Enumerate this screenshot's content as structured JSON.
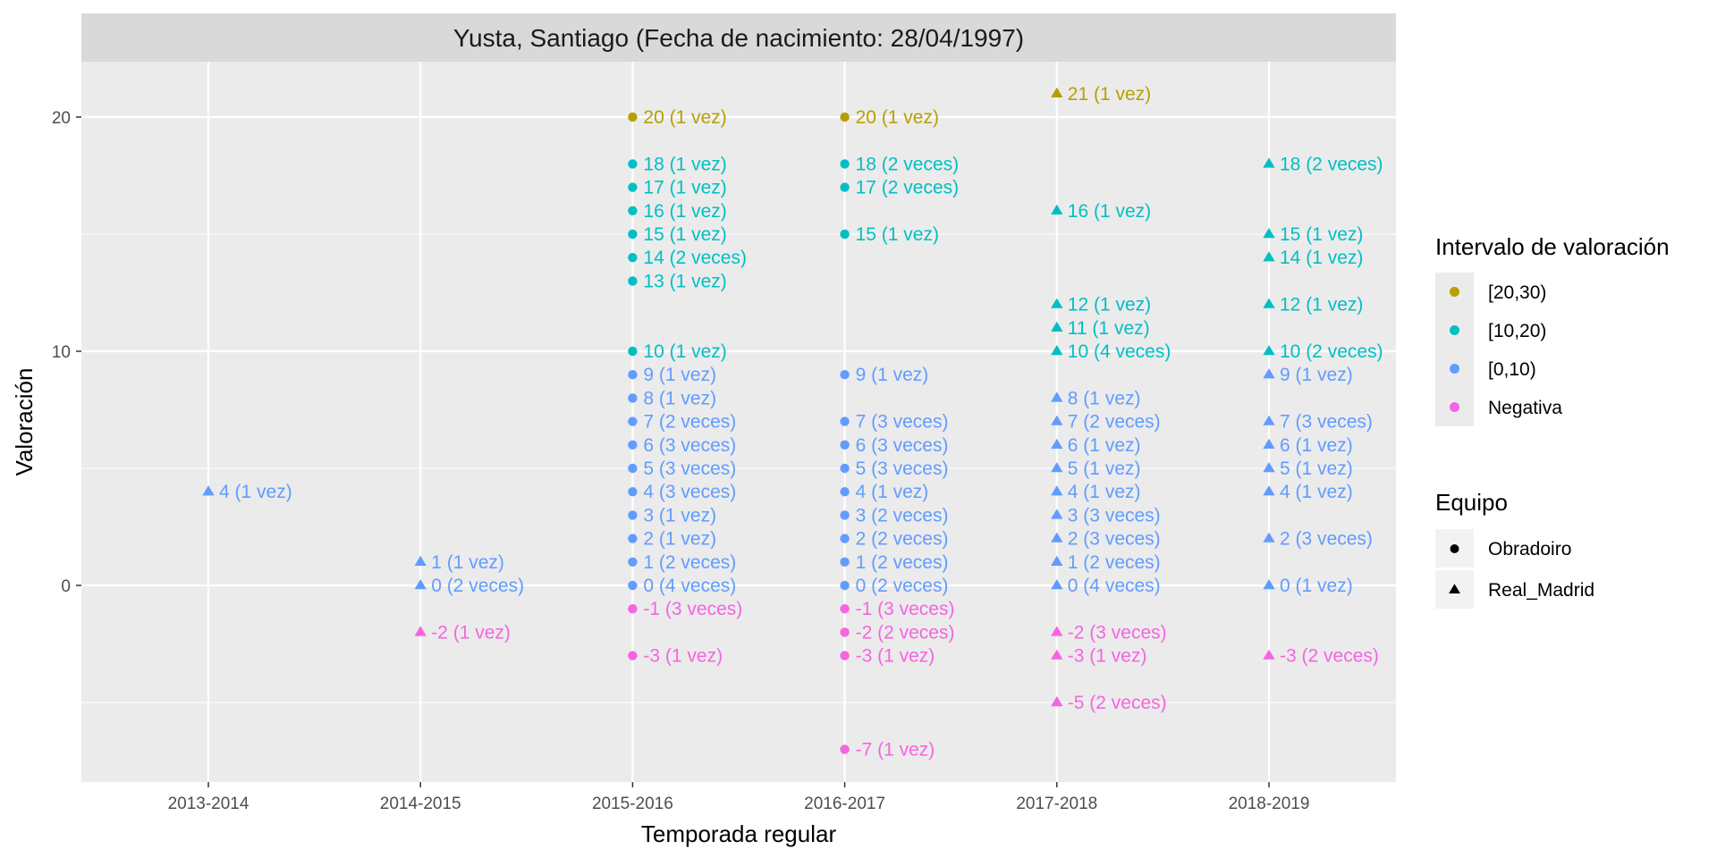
{
  "chart_data": {
    "type": "scatter",
    "title": "Yusta, Santiago (Fecha de nacimiento: 28/04/1997)",
    "xlabel": "Temporada regular",
    "ylabel": "Valoración",
    "categories": [
      "2013-2014",
      "2014-2015",
      "2015-2016",
      "2016-2017",
      "2017-2018",
      "2018-2019"
    ],
    "ylim": [
      -8,
      22.5
    ],
    "yticks": [
      0,
      10,
      20
    ],
    "grid": true,
    "legend_placement": "right",
    "legend_color": {
      "title": "Intervalo de valoración",
      "items": [
        {
          "label": "[20,30)",
          "color": "#b79f00"
        },
        {
          "label": "[10,20)",
          "color": "#00bfc4"
        },
        {
          "label": "[0,10)",
          "color": "#619cff"
        },
        {
          "label": "Negativa",
          "color": "#f564e3"
        }
      ]
    },
    "legend_shape": {
      "title": "Equipo",
      "items": [
        {
          "label": "Obradoiro",
          "shape": "circle"
        },
        {
          "label": "Real_Madrid",
          "shape": "triangle"
        }
      ]
    },
    "points": [
      {
        "x": "2013-2014",
        "y": 4,
        "label": "4 (1 vez)",
        "interval": "[0,10)",
        "team": "Real_Madrid"
      },
      {
        "x": "2014-2015",
        "y": 1,
        "label": "1 (1 vez)",
        "interval": "[0,10)",
        "team": "Real_Madrid"
      },
      {
        "x": "2014-2015",
        "y": 0,
        "label": "0 (2 veces)",
        "interval": "[0,10)",
        "team": "Real_Madrid"
      },
      {
        "x": "2014-2015",
        "y": -2,
        "label": "-2 (1 vez)",
        "interval": "Negativa",
        "team": "Real_Madrid"
      },
      {
        "x": "2015-2016",
        "y": 20,
        "label": "20 (1 vez)",
        "interval": "[20,30)",
        "team": "Obradoiro"
      },
      {
        "x": "2015-2016",
        "y": 18,
        "label": "18 (1 vez)",
        "interval": "[10,20)",
        "team": "Obradoiro"
      },
      {
        "x": "2015-2016",
        "y": 17,
        "label": "17 (1 vez)",
        "interval": "[10,20)",
        "team": "Obradoiro"
      },
      {
        "x": "2015-2016",
        "y": 16,
        "label": "16 (1 vez)",
        "interval": "[10,20)",
        "team": "Obradoiro"
      },
      {
        "x": "2015-2016",
        "y": 15,
        "label": "15 (1 vez)",
        "interval": "[10,20)",
        "team": "Obradoiro"
      },
      {
        "x": "2015-2016",
        "y": 14,
        "label": "14 (2 veces)",
        "interval": "[10,20)",
        "team": "Obradoiro"
      },
      {
        "x": "2015-2016",
        "y": 13,
        "label": "13 (1 vez)",
        "interval": "[10,20)",
        "team": "Obradoiro"
      },
      {
        "x": "2015-2016",
        "y": 10,
        "label": "10 (1 vez)",
        "interval": "[10,20)",
        "team": "Obradoiro"
      },
      {
        "x": "2015-2016",
        "y": 9,
        "label": "9 (1 vez)",
        "interval": "[0,10)",
        "team": "Obradoiro"
      },
      {
        "x": "2015-2016",
        "y": 8,
        "label": "8 (1 vez)",
        "interval": "[0,10)",
        "team": "Obradoiro"
      },
      {
        "x": "2015-2016",
        "y": 7,
        "label": "7 (2 veces)",
        "interval": "[0,10)",
        "team": "Obradoiro"
      },
      {
        "x": "2015-2016",
        "y": 6,
        "label": "6 (3 veces)",
        "interval": "[0,10)",
        "team": "Obradoiro"
      },
      {
        "x": "2015-2016",
        "y": 5,
        "label": "5 (3 veces)",
        "interval": "[0,10)",
        "team": "Obradoiro"
      },
      {
        "x": "2015-2016",
        "y": 4,
        "label": "4 (3 veces)",
        "interval": "[0,10)",
        "team": "Obradoiro"
      },
      {
        "x": "2015-2016",
        "y": 3,
        "label": "3 (1 vez)",
        "interval": "[0,10)",
        "team": "Obradoiro"
      },
      {
        "x": "2015-2016",
        "y": 2,
        "label": "2 (1 vez)",
        "interval": "[0,10)",
        "team": "Obradoiro"
      },
      {
        "x": "2015-2016",
        "y": 1,
        "label": "1 (2 veces)",
        "interval": "[0,10)",
        "team": "Obradoiro"
      },
      {
        "x": "2015-2016",
        "y": 0,
        "label": "0 (4 veces)",
        "interval": "[0,10)",
        "team": "Obradoiro"
      },
      {
        "x": "2015-2016",
        "y": -1,
        "label": "-1 (3 veces)",
        "interval": "Negativa",
        "team": "Obradoiro"
      },
      {
        "x": "2015-2016",
        "y": -3,
        "label": "-3 (1 vez)",
        "interval": "Negativa",
        "team": "Obradoiro"
      },
      {
        "x": "2016-2017",
        "y": 20,
        "label": "20 (1 vez)",
        "interval": "[20,30)",
        "team": "Obradoiro"
      },
      {
        "x": "2016-2017",
        "y": 18,
        "label": "18 (2 veces)",
        "interval": "[10,20)",
        "team": "Obradoiro"
      },
      {
        "x": "2016-2017",
        "y": 17,
        "label": "17 (2 veces)",
        "interval": "[10,20)",
        "team": "Obradoiro"
      },
      {
        "x": "2016-2017",
        "y": 15,
        "label": "15 (1 vez)",
        "interval": "[10,20)",
        "team": "Obradoiro"
      },
      {
        "x": "2016-2017",
        "y": 9,
        "label": "9 (1 vez)",
        "interval": "[0,10)",
        "team": "Obradoiro"
      },
      {
        "x": "2016-2017",
        "y": 7,
        "label": "7 (3 veces)",
        "interval": "[0,10)",
        "team": "Obradoiro"
      },
      {
        "x": "2016-2017",
        "y": 6,
        "label": "6 (3 veces)",
        "interval": "[0,10)",
        "team": "Obradoiro"
      },
      {
        "x": "2016-2017",
        "y": 5,
        "label": "5 (3 veces)",
        "interval": "[0,10)",
        "team": "Obradoiro"
      },
      {
        "x": "2016-2017",
        "y": 4,
        "label": "4 (1 vez)",
        "interval": "[0,10)",
        "team": "Obradoiro"
      },
      {
        "x": "2016-2017",
        "y": 3,
        "label": "3 (2 veces)",
        "interval": "[0,10)",
        "team": "Obradoiro"
      },
      {
        "x": "2016-2017",
        "y": 2,
        "label": "2 (2 veces)",
        "interval": "[0,10)",
        "team": "Obradoiro"
      },
      {
        "x": "2016-2017",
        "y": 1,
        "label": "1 (2 veces)",
        "interval": "[0,10)",
        "team": "Obradoiro"
      },
      {
        "x": "2016-2017",
        "y": 0,
        "label": "0 (2 veces)",
        "interval": "[0,10)",
        "team": "Obradoiro"
      },
      {
        "x": "2016-2017",
        "y": -1,
        "label": "-1 (3 veces)",
        "interval": "Negativa",
        "team": "Obradoiro"
      },
      {
        "x": "2016-2017",
        "y": -2,
        "label": "-2 (2 veces)",
        "interval": "Negativa",
        "team": "Obradoiro"
      },
      {
        "x": "2016-2017",
        "y": -3,
        "label": "-3 (1 vez)",
        "interval": "Negativa",
        "team": "Obradoiro"
      },
      {
        "x": "2016-2017",
        "y": -7,
        "label": "-7 (1 vez)",
        "interval": "Negativa",
        "team": "Obradoiro"
      },
      {
        "x": "2017-2018",
        "y": 21,
        "label": "21 (1 vez)",
        "interval": "[20,30)",
        "team": "Real_Madrid"
      },
      {
        "x": "2017-2018",
        "y": 16,
        "label": "16 (1 vez)",
        "interval": "[10,20)",
        "team": "Real_Madrid"
      },
      {
        "x": "2017-2018",
        "y": 12,
        "label": "12 (1 vez)",
        "interval": "[10,20)",
        "team": "Real_Madrid"
      },
      {
        "x": "2017-2018",
        "y": 11,
        "label": "11 (1 vez)",
        "interval": "[10,20)",
        "team": "Real_Madrid"
      },
      {
        "x": "2017-2018",
        "y": 10,
        "label": "10 (4 veces)",
        "interval": "[10,20)",
        "team": "Real_Madrid"
      },
      {
        "x": "2017-2018",
        "y": 8,
        "label": "8 (1 vez)",
        "interval": "[0,10)",
        "team": "Real_Madrid"
      },
      {
        "x": "2017-2018",
        "y": 7,
        "label": "7 (2 veces)",
        "interval": "[0,10)",
        "team": "Real_Madrid"
      },
      {
        "x": "2017-2018",
        "y": 6,
        "label": "6 (1 vez)",
        "interval": "[0,10)",
        "team": "Real_Madrid"
      },
      {
        "x": "2017-2018",
        "y": 5,
        "label": "5 (1 vez)",
        "interval": "[0,10)",
        "team": "Real_Madrid"
      },
      {
        "x": "2017-2018",
        "y": 4,
        "label": "4 (1 vez)",
        "interval": "[0,10)",
        "team": "Real_Madrid"
      },
      {
        "x": "2017-2018",
        "y": 3,
        "label": "3 (3 veces)",
        "interval": "[0,10)",
        "team": "Real_Madrid"
      },
      {
        "x": "2017-2018",
        "y": 2,
        "label": "2 (3 veces)",
        "interval": "[0,10)",
        "team": "Real_Madrid"
      },
      {
        "x": "2017-2018",
        "y": 1,
        "label": "1 (2 veces)",
        "interval": "[0,10)",
        "team": "Real_Madrid"
      },
      {
        "x": "2017-2018",
        "y": 0,
        "label": "0 (4 veces)",
        "interval": "[0,10)",
        "team": "Real_Madrid"
      },
      {
        "x": "2017-2018",
        "y": -2,
        "label": "-2 (3 veces)",
        "interval": "Negativa",
        "team": "Real_Madrid"
      },
      {
        "x": "2017-2018",
        "y": -3,
        "label": "-3 (1 vez)",
        "interval": "Negativa",
        "team": "Real_Madrid"
      },
      {
        "x": "2017-2018",
        "y": -5,
        "label": "-5 (2 veces)",
        "interval": "Negativa",
        "team": "Real_Madrid"
      },
      {
        "x": "2018-2019",
        "y": 18,
        "label": "18 (2 veces)",
        "interval": "[10,20)",
        "team": "Real_Madrid"
      },
      {
        "x": "2018-2019",
        "y": 15,
        "label": "15 (1 vez)",
        "interval": "[10,20)",
        "team": "Real_Madrid"
      },
      {
        "x": "2018-2019",
        "y": 14,
        "label": "14 (1 vez)",
        "interval": "[10,20)",
        "team": "Real_Madrid"
      },
      {
        "x": "2018-2019",
        "y": 12,
        "label": "12 (1 vez)",
        "interval": "[10,20)",
        "team": "Real_Madrid"
      },
      {
        "x": "2018-2019",
        "y": 10,
        "label": "10 (2 veces)",
        "interval": "[10,20)",
        "team": "Real_Madrid"
      },
      {
        "x": "2018-2019",
        "y": 9,
        "label": "9 (1 vez)",
        "interval": "[0,10)",
        "team": "Real_Madrid"
      },
      {
        "x": "2018-2019",
        "y": 7,
        "label": "7 (3 veces)",
        "interval": "[0,10)",
        "team": "Real_Madrid"
      },
      {
        "x": "2018-2019",
        "y": 6,
        "label": "6 (1 vez)",
        "interval": "[0,10)",
        "team": "Real_Madrid"
      },
      {
        "x": "2018-2019",
        "y": 5,
        "label": "5 (1 vez)",
        "interval": "[0,10)",
        "team": "Real_Madrid"
      },
      {
        "x": "2018-2019",
        "y": 4,
        "label": "4 (1 vez)",
        "interval": "[0,10)",
        "team": "Real_Madrid"
      },
      {
        "x": "2018-2019",
        "y": 2,
        "label": "2 (3 veces)",
        "interval": "[0,10)",
        "team": "Real_Madrid"
      },
      {
        "x": "2018-2019",
        "y": 0,
        "label": "0 (1 vez)",
        "interval": "[0,10)",
        "team": "Real_Madrid"
      },
      {
        "x": "2018-2019",
        "y": -3,
        "label": "-3 (2 veces)",
        "interval": "Negativa",
        "team": "Real_Madrid"
      }
    ]
  }
}
